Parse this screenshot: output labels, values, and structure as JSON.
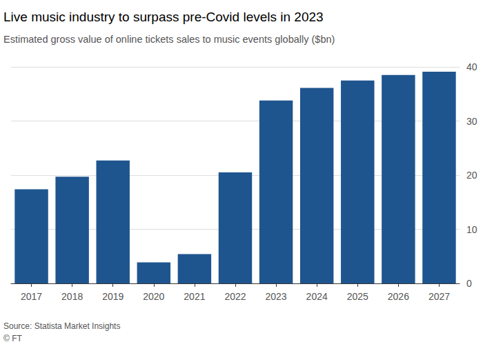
{
  "chart_data": {
    "type": "bar",
    "title": "Live music industry to surpass pre-Covid levels in 2023",
    "subtitle": "Estimated gross value of online tickets sales to music events globally ($bn)",
    "annotations": [
      "Source: Statista Market Insights",
      "© FT"
    ],
    "categories": [
      "2017",
      "2018",
      "2019",
      "2020",
      "2021",
      "2022",
      "2023",
      "2024",
      "2025",
      "2026",
      "2027"
    ],
    "values": [
      17.4,
      19.7,
      22.7,
      3.9,
      5.4,
      20.5,
      33.8,
      36.1,
      37.5,
      38.5,
      39.1
    ],
    "color": "#1f558f",
    "ylim": [
      0,
      40
    ],
    "yticks": [
      0,
      10,
      20,
      30,
      40
    ],
    "grid": true
  }
}
